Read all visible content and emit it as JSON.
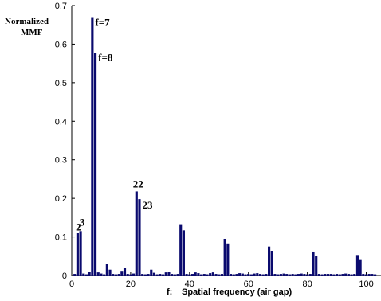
{
  "chart_data": {
    "type": "bar",
    "ylabel": [
      "Normalized",
      "MMF"
    ],
    "xlabel_prefix": "f:",
    "xlabel": "Spatial frequency  (air gap)",
    "xlim": [
      0,
      105
    ],
    "ylim": [
      0,
      0.7
    ],
    "xticks": [
      0,
      20,
      40,
      60,
      80,
      100
    ],
    "yticks": [
      0,
      0.1,
      0.2,
      0.3,
      0.4,
      0.5,
      0.6,
      0.7
    ],
    "bar_color": "#0a0a6e",
    "bars": [
      {
        "x": 1,
        "y": 0.004
      },
      {
        "x": 2,
        "y": 0.11
      },
      {
        "x": 3,
        "y": 0.115
      },
      {
        "x": 4,
        "y": 0.005
      },
      {
        "x": 5,
        "y": 0.003
      },
      {
        "x": 6,
        "y": 0.01
      },
      {
        "x": 7,
        "y": 0.67
      },
      {
        "x": 8,
        "y": 0.577
      },
      {
        "x": 9,
        "y": 0.008
      },
      {
        "x": 10,
        "y": 0.005
      },
      {
        "x": 11,
        "y": 0.003
      },
      {
        "x": 12,
        "y": 0.03
      },
      {
        "x": 13,
        "y": 0.015
      },
      {
        "x": 14,
        "y": 0.004
      },
      {
        "x": 15,
        "y": 0.003
      },
      {
        "x": 16,
        "y": 0.004
      },
      {
        "x": 17,
        "y": 0.012
      },
      {
        "x": 18,
        "y": 0.02
      },
      {
        "x": 19,
        "y": 0.004
      },
      {
        "x": 20,
        "y": 0.003
      },
      {
        "x": 21,
        "y": 0.005
      },
      {
        "x": 22,
        "y": 0.218
      },
      {
        "x": 23,
        "y": 0.198
      },
      {
        "x": 24,
        "y": 0.004
      },
      {
        "x": 25,
        "y": 0.003
      },
      {
        "x": 26,
        "y": 0.004
      },
      {
        "x": 27,
        "y": 0.015
      },
      {
        "x": 28,
        "y": 0.007
      },
      {
        "x": 29,
        "y": 0.003
      },
      {
        "x": 30,
        "y": 0.004
      },
      {
        "x": 31,
        "y": 0.003
      },
      {
        "x": 32,
        "y": 0.008
      },
      {
        "x": 33,
        "y": 0.01
      },
      {
        "x": 34,
        "y": 0.004
      },
      {
        "x": 35,
        "y": 0.003
      },
      {
        "x": 36,
        "y": 0.004
      },
      {
        "x": 37,
        "y": 0.133
      },
      {
        "x": 38,
        "y": 0.117
      },
      {
        "x": 39,
        "y": 0.004
      },
      {
        "x": 40,
        "y": 0.003
      },
      {
        "x": 41,
        "y": 0.004
      },
      {
        "x": 42,
        "y": 0.008
      },
      {
        "x": 43,
        "y": 0.006
      },
      {
        "x": 44,
        "y": 0.003
      },
      {
        "x": 45,
        "y": 0.004
      },
      {
        "x": 46,
        "y": 0.003
      },
      {
        "x": 47,
        "y": 0.006
      },
      {
        "x": 48,
        "y": 0.008
      },
      {
        "x": 49,
        "y": 0.004
      },
      {
        "x": 50,
        "y": 0.003
      },
      {
        "x": 51,
        "y": 0.004
      },
      {
        "x": 52,
        "y": 0.095
      },
      {
        "x": 53,
        "y": 0.083
      },
      {
        "x": 54,
        "y": 0.004
      },
      {
        "x": 55,
        "y": 0.003
      },
      {
        "x": 56,
        "y": 0.004
      },
      {
        "x": 57,
        "y": 0.006
      },
      {
        "x": 58,
        "y": 0.005
      },
      {
        "x": 59,
        "y": 0.003
      },
      {
        "x": 60,
        "y": 0.004
      },
      {
        "x": 61,
        "y": 0.003
      },
      {
        "x": 62,
        "y": 0.005
      },
      {
        "x": 63,
        "y": 0.006
      },
      {
        "x": 64,
        "y": 0.004
      },
      {
        "x": 65,
        "y": 0.003
      },
      {
        "x": 66,
        "y": 0.004
      },
      {
        "x": 67,
        "y": 0.075
      },
      {
        "x": 68,
        "y": 0.064
      },
      {
        "x": 69,
        "y": 0.004
      },
      {
        "x": 70,
        "y": 0.003
      },
      {
        "x": 71,
        "y": 0.004
      },
      {
        "x": 72,
        "y": 0.005
      },
      {
        "x": 73,
        "y": 0.004
      },
      {
        "x": 74,
        "y": 0.003
      },
      {
        "x": 75,
        "y": 0.004
      },
      {
        "x": 76,
        "y": 0.003
      },
      {
        "x": 77,
        "y": 0.004
      },
      {
        "x": 78,
        "y": 0.005
      },
      {
        "x": 79,
        "y": 0.004
      },
      {
        "x": 80,
        "y": 0.003
      },
      {
        "x": 81,
        "y": 0.004
      },
      {
        "x": 82,
        "y": 0.062
      },
      {
        "x": 83,
        "y": 0.05
      },
      {
        "x": 84,
        "y": 0.004
      },
      {
        "x": 85,
        "y": 0.003
      },
      {
        "x": 86,
        "y": 0.004
      },
      {
        "x": 87,
        "y": 0.004
      },
      {
        "x": 88,
        "y": 0.004
      },
      {
        "x": 89,
        "y": 0.003
      },
      {
        "x": 90,
        "y": 0.004
      },
      {
        "x": 91,
        "y": 0.003
      },
      {
        "x": 92,
        "y": 0.004
      },
      {
        "x": 93,
        "y": 0.005
      },
      {
        "x": 94,
        "y": 0.004
      },
      {
        "x": 95,
        "y": 0.003
      },
      {
        "x": 96,
        "y": 0.004
      },
      {
        "x": 97,
        "y": 0.053
      },
      {
        "x": 98,
        "y": 0.042
      },
      {
        "x": 99,
        "y": 0.004
      },
      {
        "x": 100,
        "y": 0.003
      },
      {
        "x": 101,
        "y": 0.004
      },
      {
        "x": 102,
        "y": 0.004
      },
      {
        "x": 103,
        "y": 0.003
      }
    ],
    "annotations": [
      {
        "text": "2",
        "x": 2
      },
      {
        "text": "3",
        "x": 3
      },
      {
        "text": "f=7",
        "x": 7
      },
      {
        "text": "f=8",
        "x": 8
      },
      {
        "text": "22",
        "x": 22
      },
      {
        "text": "23",
        "x": 23
      }
    ]
  }
}
